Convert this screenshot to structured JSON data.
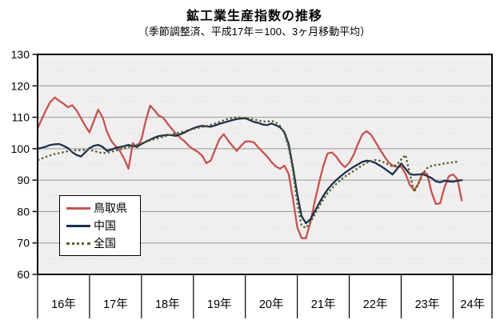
{
  "header": {
    "title": "鉱工業生産指数の推移",
    "subtitle": "（季節調整済、平成17年＝100、3ヶ月移動平均）"
  },
  "colors": {
    "tottori": "#C4534E",
    "chugoku": "#1B2F4E",
    "zenkoku": "#5A6227",
    "plot_bg": "#F1EEF0",
    "grid_major": "#95998C",
    "grid_minor": "#D9D9D2",
    "axis": "#000000",
    "text": "#000000"
  },
  "legend": {
    "items": [
      {
        "key": "tottori",
        "label": "鳥取県",
        "style": "solid"
      },
      {
        "key": "chugoku",
        "label": "中国",
        "style": "solid"
      },
      {
        "key": "zenkoku",
        "label": "全国",
        "style": "dotted"
      }
    ]
  },
  "chart_data": {
    "type": "line",
    "title": "鉱工業生産指数の推移",
    "subtitle": "（季節調整済、平成17年＝100、3ヶ月移動平均）",
    "ylim": [
      60,
      130
    ],
    "yticks": [
      130,
      120,
      110,
      100,
      90,
      80,
      70,
      60
    ],
    "grid": "major horizontal solid every 10, minor dotted every 5",
    "legend_position": "inside-left",
    "x_axis_years": [
      "16年",
      "17年",
      "18年",
      "19年",
      "20年",
      "21年",
      "22年",
      "23年",
      "24年"
    ],
    "months_per_year": 12,
    "x_start": "平成16年1月",
    "series": [
      {
        "key": "tottori",
        "name": "鳥取県",
        "color": "#C4534E",
        "line_style": "solid",
        "values": [
          106.5,
          109.5,
          112.5,
          115.0,
          116.3,
          115.2,
          114.3,
          113.2,
          113.8,
          112.2,
          109.8,
          107.3,
          105.2,
          108.8,
          112.4,
          110.0,
          105.5,
          102.5,
          100.8,
          99.3,
          96.8,
          93.6,
          101.8,
          100.4,
          103.0,
          109.0,
          113.7,
          112.2,
          110.5,
          109.9,
          108.0,
          106.3,
          104.7,
          103.4,
          102.3,
          100.8,
          99.8,
          99.0,
          97.8,
          95.4,
          96.2,
          99.6,
          103.0,
          104.6,
          102.6,
          100.9,
          99.3,
          100.9,
          102.3,
          102.3,
          102.0,
          100.4,
          99.0,
          97.6,
          95.8,
          94.4,
          93.6,
          94.6,
          92.0,
          84.0,
          75.0,
          71.5,
          71.5,
          76.5,
          83.0,
          89.0,
          94.5,
          98.5,
          98.8,
          97.5,
          95.5,
          94.1,
          95.5,
          98.0,
          101.5,
          104.5,
          105.6,
          104.5,
          102.3,
          100.0,
          97.8,
          95.8,
          94.6,
          94.2,
          94.3,
          92.0,
          88.5,
          86.8,
          88.9,
          92.4,
          92.0,
          86.3,
          82.4,
          82.6,
          87.7,
          91.2,
          91.8,
          90.3,
          83.5
        ]
      },
      {
        "key": "chugoku",
        "name": "中国",
        "color": "#1B2F4E",
        "line_style": "solid",
        "values": [
          100.0,
          100.3,
          100.7,
          101.2,
          101.4,
          101.5,
          100.9,
          100.2,
          98.9,
          98.0,
          97.5,
          98.8,
          100.2,
          100.9,
          101.2,
          100.6,
          99.3,
          99.7,
          100.2,
          100.5,
          100.8,
          101.2,
          100.8,
          100.7,
          101.5,
          102.2,
          102.9,
          103.5,
          104.0,
          104.2,
          104.4,
          104.3,
          104.1,
          104.6,
          105.2,
          105.9,
          106.5,
          107.0,
          107.3,
          107.1,
          107.0,
          107.4,
          107.9,
          108.3,
          108.7,
          109.1,
          109.4,
          109.6,
          109.7,
          109.1,
          108.5,
          108.2,
          107.7,
          107.5,
          108.0,
          107.5,
          106.8,
          105.3,
          101.5,
          94.0,
          85.5,
          78.5,
          76.3,
          77.5,
          80.0,
          82.5,
          85.0,
          87.0,
          88.6,
          90.0,
          91.2,
          92.3,
          93.3,
          94.2,
          95.0,
          95.8,
          96.2,
          96.0,
          95.5,
          94.7,
          93.8,
          92.8,
          91.8,
          93.5,
          95.3,
          93.6,
          91.9,
          91.7,
          91.8,
          91.9,
          91.3,
          90.7,
          89.6,
          89.3,
          89.8,
          89.6,
          89.5,
          89.8,
          90.0
        ]
      },
      {
        "key": "zenkoku",
        "name": "全国",
        "color": "#5A6227",
        "line_style": "dotted",
        "values": [
          96.3,
          96.9,
          97.4,
          97.9,
          98.3,
          98.6,
          98.9,
          99.2,
          99.4,
          99.5,
          99.5,
          99.6,
          99.6,
          99.3,
          98.9,
          98.6,
          98.7,
          99.0,
          99.4,
          99.8,
          100.1,
          100.5,
          100.9,
          101.3,
          101.7,
          102.1,
          102.6,
          103.0,
          103.4,
          103.8,
          104.2,
          104.6,
          104.9,
          105.2,
          105.6,
          105.9,
          106.3,
          106.6,
          106.9,
          107.2,
          107.6,
          108.0,
          108.5,
          109.0,
          109.5,
          109.8,
          110.0,
          109.9,
          109.8,
          109.6,
          109.3,
          109.0,
          108.7,
          108.6,
          108.9,
          108.4,
          107.3,
          105.0,
          100.5,
          93.0,
          82.5,
          75.5,
          74.8,
          76.5,
          79.0,
          81.5,
          83.8,
          85.8,
          87.4,
          88.8,
          90.0,
          91.1,
          92.0,
          92.9,
          93.8,
          94.7,
          95.5,
          96.1,
          96.4,
          96.2,
          95.7,
          95.0,
          94.4,
          94.9,
          96.6,
          98.0,
          92.0,
          86.2,
          88.9,
          92.0,
          93.8,
          94.5,
          94.8,
          95.0,
          95.3,
          95.5,
          95.7,
          95.9,
          null
        ]
      }
    ]
  }
}
